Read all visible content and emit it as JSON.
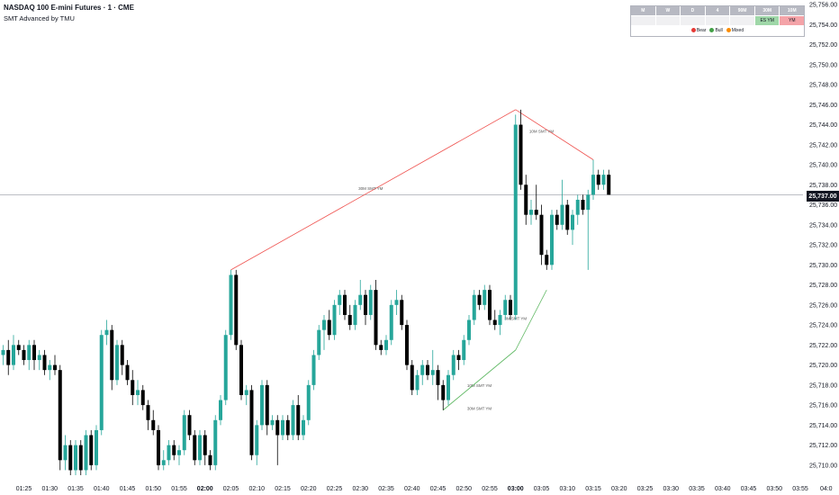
{
  "header": {
    "title": "NASDAQ 100 E-mini Futures · 1 · CME",
    "indicator": "SMT Advanced by TMU"
  },
  "smt_table": {
    "headers": [
      "M",
      "W",
      "D",
      "4",
      "90M",
      "30M",
      "10M"
    ],
    "cells": [
      "",
      "",
      "",
      "",
      "",
      "ES YM",
      "YM"
    ],
    "cell_colors": [
      "",
      "",
      "",
      "",
      "",
      "#9fd7a8",
      "#f4a3a8"
    ],
    "legend": [
      {
        "label": "Bear",
        "color": "#e53935"
      },
      {
        "label": "Bull",
        "color": "#43a047"
      },
      {
        "label": "Mixed",
        "color": "#fb8c00"
      }
    ]
  },
  "current_price": {
    "value": 25737.0,
    "label": "25,737.00"
  },
  "colors": {
    "up": "#26a69a",
    "down": "#000000",
    "bear_line": "#ef5350",
    "bull_line": "#66bb6a"
  },
  "chart_data": {
    "type": "candlestick",
    "ylim": [
      25709,
      25756
    ],
    "y_ticks": [
      25710,
      25712,
      25714,
      25716,
      25718,
      25720,
      25722,
      25724,
      25726,
      25728,
      25730,
      25732,
      25734,
      25736,
      25738,
      25740,
      25742,
      25744,
      25746,
      25748,
      25750,
      25752,
      25754,
      25756
    ],
    "y_tick_labels": [
      "25,710.00",
      "25,712.00",
      "25,714.00",
      "25,716.00",
      "25,718.00",
      "25,720.00",
      "25,722.00",
      "25,724.00",
      "25,726.00",
      "25,728.00",
      "25,730.00",
      "25,732.00",
      "25,734.00",
      "25,736.00",
      "25,738.00",
      "25,740.00",
      "25,742.00",
      "25,744.00",
      "25,746.00",
      "25,748.00",
      "25,750.00",
      "25,752.00",
      "25,754.00",
      "25,756.00"
    ],
    "x_ticks": [
      "01:25",
      "01:30",
      "01:35",
      "01:40",
      "01:45",
      "01:50",
      "01:55",
      "02:00",
      "02:05",
      "02:10",
      "02:15",
      "02:20",
      "02:25",
      "02:30",
      "02:35",
      "02:40",
      "02:45",
      "02:50",
      "02:55",
      "03:00",
      "03:05",
      "03:10",
      "03:15",
      "03:20",
      "03:25",
      "03:30",
      "03:35",
      "03:40",
      "03:45",
      "03:50",
      "03:55",
      "04:0"
    ],
    "bold_x_ticks": [
      "02:00",
      "03:00"
    ],
    "time_start": "01:21",
    "candles": [
      {
        "t": "01:21",
        "o": 25721.0,
        "h": 25722.0,
        "l": 25720.0,
        "c": 25721.5
      },
      {
        "t": "01:22",
        "o": 25721.5,
        "h": 25722.5,
        "l": 25719.0,
        "c": 25720.0
      },
      {
        "t": "01:23",
        "o": 25720.0,
        "h": 25723.0,
        "l": 25719.5,
        "c": 25722.0
      },
      {
        "t": "01:24",
        "o": 25722.0,
        "h": 25722.5,
        "l": 25721.0,
        "c": 25721.5
      },
      {
        "t": "01:25",
        "o": 25721.5,
        "h": 25722.0,
        "l": 25720.0,
        "c": 25720.5
      },
      {
        "t": "01:26",
        "o": 25720.5,
        "h": 25722.5,
        "l": 25719.5,
        "c": 25722.0
      },
      {
        "t": "01:27",
        "o": 25722.0,
        "h": 25722.5,
        "l": 25719.5,
        "c": 25720.5
      },
      {
        "t": "01:28",
        "o": 25720.5,
        "h": 25721.5,
        "l": 25719.5,
        "c": 25721.0
      },
      {
        "t": "01:29",
        "o": 25721.0,
        "h": 25721.5,
        "l": 25719.0,
        "c": 25719.5
      },
      {
        "t": "01:30",
        "o": 25719.5,
        "h": 25720.5,
        "l": 25718.5,
        "c": 25720.0
      },
      {
        "t": "01:31",
        "o": 25720.0,
        "h": 25721.0,
        "l": 25719.0,
        "c": 25719.5
      },
      {
        "t": "01:32",
        "o": 25719.5,
        "h": 25720.0,
        "l": 25709.5,
        "c": 25710.5
      },
      {
        "t": "01:33",
        "o": 25710.5,
        "h": 25713.0,
        "l": 25709.5,
        "c": 25712.0
      },
      {
        "t": "01:34",
        "o": 25712.0,
        "h": 25712.5,
        "l": 25709.0,
        "c": 25709.5
      },
      {
        "t": "01:35",
        "o": 25709.5,
        "h": 25712.5,
        "l": 25709.0,
        "c": 25712.0
      },
      {
        "t": "01:36",
        "o": 25712.0,
        "h": 25712.5,
        "l": 25709.0,
        "c": 25709.5
      },
      {
        "t": "01:37",
        "o": 25709.5,
        "h": 25713.5,
        "l": 25709.0,
        "c": 25713.0
      },
      {
        "t": "01:38",
        "o": 25713.0,
        "h": 25713.5,
        "l": 25709.5,
        "c": 25710.0
      },
      {
        "t": "01:39",
        "o": 25710.0,
        "h": 25714.0,
        "l": 25709.5,
        "c": 25713.5
      },
      {
        "t": "01:40",
        "o": 25713.5,
        "h": 25723.5,
        "l": 25713.0,
        "c": 25723.0
      },
      {
        "t": "01:41",
        "o": 25723.0,
        "h": 25724.5,
        "l": 25722.0,
        "c": 25723.5
      },
      {
        "t": "01:42",
        "o": 25723.5,
        "h": 25724.0,
        "l": 25717.5,
        "c": 25718.5
      },
      {
        "t": "01:43",
        "o": 25718.5,
        "h": 25722.5,
        "l": 25718.0,
        "c": 25722.0
      },
      {
        "t": "01:44",
        "o": 25722.0,
        "h": 25722.5,
        "l": 25719.0,
        "c": 25720.0
      },
      {
        "t": "01:45",
        "o": 25720.0,
        "h": 25720.5,
        "l": 25718.0,
        "c": 25718.5
      },
      {
        "t": "01:46",
        "o": 25718.5,
        "h": 25719.5,
        "l": 25716.0,
        "c": 25717.0
      },
      {
        "t": "01:47",
        "o": 25717.0,
        "h": 25718.5,
        "l": 25716.0,
        "c": 25717.5
      },
      {
        "t": "01:48",
        "o": 25717.5,
        "h": 25718.0,
        "l": 25715.5,
        "c": 25716.0
      },
      {
        "t": "01:49",
        "o": 25716.0,
        "h": 25716.5,
        "l": 25713.5,
        "c": 25714.5
      },
      {
        "t": "01:50",
        "o": 25714.5,
        "h": 25715.5,
        "l": 25713.0,
        "c": 25713.5
      },
      {
        "t": "01:51",
        "o": 25713.5,
        "h": 25714.0,
        "l": 25709.5,
        "c": 25710.0
      },
      {
        "t": "01:52",
        "o": 25710.0,
        "h": 25711.5,
        "l": 25709.5,
        "c": 25710.5
      },
      {
        "t": "01:53",
        "o": 25710.5,
        "h": 25712.5,
        "l": 25710.0,
        "c": 25712.0
      },
      {
        "t": "01:54",
        "o": 25712.0,
        "h": 25712.5,
        "l": 25710.5,
        "c": 25711.0
      },
      {
        "t": "01:55",
        "o": 25711.0,
        "h": 25712.0,
        "l": 25710.0,
        "c": 25711.5
      },
      {
        "t": "01:56",
        "o": 25711.5,
        "h": 25715.5,
        "l": 25711.0,
        "c": 25715.0
      },
      {
        "t": "01:57",
        "o": 25715.0,
        "h": 25715.5,
        "l": 25712.5,
        "c": 25713.0
      },
      {
        "t": "01:58",
        "o": 25713.0,
        "h": 25713.5,
        "l": 25710.0,
        "c": 25710.5
      },
      {
        "t": "01:59",
        "o": 25710.5,
        "h": 25713.5,
        "l": 25710.0,
        "c": 25713.0
      },
      {
        "t": "02:00",
        "o": 25713.0,
        "h": 25713.5,
        "l": 25710.0,
        "c": 25711.0
      },
      {
        "t": "02:01",
        "o": 25711.0,
        "h": 25711.5,
        "l": 25709.5,
        "c": 25710.0
      },
      {
        "t": "02:02",
        "o": 25710.0,
        "h": 25715.0,
        "l": 25709.5,
        "c": 25714.5
      },
      {
        "t": "02:03",
        "o": 25714.5,
        "h": 25717.0,
        "l": 25714.0,
        "c": 25716.5
      },
      {
        "t": "02:04",
        "o": 25716.5,
        "h": 25723.5,
        "l": 25716.0,
        "c": 25723.0
      },
      {
        "t": "02:05",
        "o": 25723.0,
        "h": 25729.5,
        "l": 25722.5,
        "c": 25729.0
      },
      {
        "t": "02:06",
        "o": 25729.0,
        "h": 25729.5,
        "l": 25721.5,
        "c": 25722.0
      },
      {
        "t": "02:07",
        "o": 25722.0,
        "h": 25722.5,
        "l": 25716.5,
        "c": 25717.0
      },
      {
        "t": "02:08",
        "o": 25717.0,
        "h": 25718.0,
        "l": 25716.0,
        "c": 25717.5
      },
      {
        "t": "02:09",
        "o": 25717.5,
        "h": 25718.0,
        "l": 25710.5,
        "c": 25711.0
      },
      {
        "t": "02:10",
        "o": 25711.0,
        "h": 25714.5,
        "l": 25710.0,
        "c": 25714.0
      },
      {
        "t": "02:11",
        "o": 25714.0,
        "h": 25718.5,
        "l": 25713.5,
        "c": 25718.0
      },
      {
        "t": "02:12",
        "o": 25718.0,
        "h": 25718.5,
        "l": 25713.0,
        "c": 25714.0
      },
      {
        "t": "02:13",
        "o": 25714.0,
        "h": 25715.0,
        "l": 25713.5,
        "c": 25714.5
      },
      {
        "t": "02:14",
        "o": 25714.5,
        "h": 25715.0,
        "l": 25710.0,
        "c": 25713.0
      },
      {
        "t": "02:15",
        "o": 25713.0,
        "h": 25715.0,
        "l": 25712.5,
        "c": 25714.5
      },
      {
        "t": "02:16",
        "o": 25714.5,
        "h": 25715.0,
        "l": 25712.5,
        "c": 25713.0
      },
      {
        "t": "02:17",
        "o": 25713.0,
        "h": 25716.5,
        "l": 25712.5,
        "c": 25716.0
      },
      {
        "t": "02:18",
        "o": 25716.0,
        "h": 25717.0,
        "l": 25712.5,
        "c": 25713.0
      },
      {
        "t": "02:19",
        "o": 25713.0,
        "h": 25715.0,
        "l": 25712.5,
        "c": 25714.5
      },
      {
        "t": "02:20",
        "o": 25714.5,
        "h": 25718.5,
        "l": 25714.0,
        "c": 25718.0
      },
      {
        "t": "02:21",
        "o": 25718.0,
        "h": 25721.5,
        "l": 25717.5,
        "c": 25721.0
      },
      {
        "t": "02:22",
        "o": 25721.0,
        "h": 25724.0,
        "l": 25720.5,
        "c": 25723.5
      },
      {
        "t": "02:23",
        "o": 25723.5,
        "h": 25725.0,
        "l": 25721.5,
        "c": 25724.5
      },
      {
        "t": "02:24",
        "o": 25724.5,
        "h": 25725.5,
        "l": 25722.5,
        "c": 25723.0
      },
      {
        "t": "02:25",
        "o": 25723.0,
        "h": 25726.5,
        "l": 25722.5,
        "c": 25726.0
      },
      {
        "t": "02:26",
        "o": 25726.0,
        "h": 25727.5,
        "l": 25725.0,
        "c": 25727.0
      },
      {
        "t": "02:27",
        "o": 25727.0,
        "h": 25727.5,
        "l": 25724.5,
        "c": 25725.0
      },
      {
        "t": "02:28",
        "o": 25725.0,
        "h": 25726.0,
        "l": 25723.5,
        "c": 25724.0
      },
      {
        "t": "02:29",
        "o": 25724.0,
        "h": 25726.5,
        "l": 25723.5,
        "c": 25726.0
      },
      {
        "t": "02:30",
        "o": 25726.0,
        "h": 25728.5,
        "l": 25725.5,
        "c": 25727.0
      },
      {
        "t": "02:31",
        "o": 25727.0,
        "h": 25727.5,
        "l": 25724.0,
        "c": 25725.0
      },
      {
        "t": "02:32",
        "o": 25725.0,
        "h": 25728.0,
        "l": 25724.5,
        "c": 25727.5
      },
      {
        "t": "02:33",
        "o": 25727.5,
        "h": 25728.5,
        "l": 25721.5,
        "c": 25722.0
      },
      {
        "t": "02:34",
        "o": 25722.0,
        "h": 25722.5,
        "l": 25721.0,
        "c": 25721.5
      },
      {
        "t": "02:35",
        "o": 25721.5,
        "h": 25723.0,
        "l": 25721.0,
        "c": 25722.5
      },
      {
        "t": "02:36",
        "o": 25722.5,
        "h": 25726.5,
        "l": 25722.0,
        "c": 25726.0
      },
      {
        "t": "02:37",
        "o": 25726.0,
        "h": 25727.5,
        "l": 25725.0,
        "c": 25726.5
      },
      {
        "t": "02:38",
        "o": 25726.5,
        "h": 25727.0,
        "l": 25723.5,
        "c": 25724.0
      },
      {
        "t": "02:39",
        "o": 25724.0,
        "h": 25724.5,
        "l": 25719.5,
        "c": 25720.0
      },
      {
        "t": "02:40",
        "o": 25720.0,
        "h": 25720.5,
        "l": 25717.0,
        "c": 25717.5
      },
      {
        "t": "02:41",
        "o": 25717.5,
        "h": 25719.5,
        "l": 25717.0,
        "c": 25719.0
      },
      {
        "t": "02:42",
        "o": 25719.0,
        "h": 25720.5,
        "l": 25718.0,
        "c": 25720.0
      },
      {
        "t": "02:43",
        "o": 25720.0,
        "h": 25720.5,
        "l": 25718.5,
        "c": 25719.0
      },
      {
        "t": "02:44",
        "o": 25719.0,
        "h": 25721.5,
        "l": 25718.0,
        "c": 25719.5
      },
      {
        "t": "02:45",
        "o": 25719.5,
        "h": 25720.0,
        "l": 25716.5,
        "c": 25718.0
      },
      {
        "t": "02:46",
        "o": 25718.0,
        "h": 25718.5,
        "l": 25715.5,
        "c": 25716.5
      },
      {
        "t": "02:47",
        "o": 25716.5,
        "h": 25719.5,
        "l": 25716.0,
        "c": 25719.0
      },
      {
        "t": "02:48",
        "o": 25719.0,
        "h": 25721.5,
        "l": 25718.5,
        "c": 25721.0
      },
      {
        "t": "02:49",
        "o": 25721.0,
        "h": 25721.5,
        "l": 25719.5,
        "c": 25720.5
      },
      {
        "t": "02:50",
        "o": 25720.5,
        "h": 25723.0,
        "l": 25720.0,
        "c": 25722.5
      },
      {
        "t": "02:51",
        "o": 25722.5,
        "h": 25725.0,
        "l": 25722.0,
        "c": 25724.5
      },
      {
        "t": "02:52",
        "o": 25724.5,
        "h": 25727.5,
        "l": 25724.0,
        "c": 25727.0
      },
      {
        "t": "02:53",
        "o": 25727.0,
        "h": 25727.5,
        "l": 25725.5,
        "c": 25726.0
      },
      {
        "t": "02:54",
        "o": 25726.0,
        "h": 25728.0,
        "l": 25725.5,
        "c": 25727.5
      },
      {
        "t": "02:55",
        "o": 25727.5,
        "h": 25728.0,
        "l": 25724.0,
        "c": 25724.5
      },
      {
        "t": "02:56",
        "o": 25724.5,
        "h": 25725.5,
        "l": 25723.5,
        "c": 25724.0
      },
      {
        "t": "02:57",
        "o": 25724.0,
        "h": 25725.5,
        "l": 25723.0,
        "c": 25725.0
      },
      {
        "t": "02:58",
        "o": 25725.0,
        "h": 25727.0,
        "l": 25724.5,
        "c": 25726.5
      },
      {
        "t": "02:59",
        "o": 25726.5,
        "h": 25727.0,
        "l": 25724.5,
        "c": 25725.0
      },
      {
        "t": "03:00",
        "o": 25725.0,
        "h": 25745.0,
        "l": 25724.5,
        "c": 25744.0
      },
      {
        "t": "03:01",
        "o": 25744.0,
        "h": 25745.5,
        "l": 25737.5,
        "c": 25738.0
      },
      {
        "t": "03:02",
        "o": 25738.0,
        "h": 25739.0,
        "l": 25734.0,
        "c": 25735.0
      },
      {
        "t": "03:03",
        "o": 25735.0,
        "h": 25736.5,
        "l": 25734.0,
        "c": 25735.5
      },
      {
        "t": "03:04",
        "o": 25735.5,
        "h": 25738.0,
        "l": 25734.5,
        "c": 25735.0
      },
      {
        "t": "03:05",
        "o": 25735.0,
        "h": 25736.0,
        "l": 25730.0,
        "c": 25731.0
      },
      {
        "t": "03:06",
        "o": 25731.0,
        "h": 25731.5,
        "l": 25729.5,
        "c": 25730.0
      },
      {
        "t": "03:07",
        "o": 25730.0,
        "h": 25735.5,
        "l": 25729.5,
        "c": 25735.0
      },
      {
        "t": "03:08",
        "o": 25735.0,
        "h": 25735.5,
        "l": 25733.5,
        "c": 25734.0
      },
      {
        "t": "03:09",
        "o": 25734.0,
        "h": 25738.5,
        "l": 25733.5,
        "c": 25736.0
      },
      {
        "t": "03:10",
        "o": 25736.0,
        "h": 25736.5,
        "l": 25733.0,
        "c": 25733.5
      },
      {
        "t": "03:11",
        "o": 25733.5,
        "h": 25735.5,
        "l": 25732.0,
        "c": 25735.0
      },
      {
        "t": "03:12",
        "o": 25735.0,
        "h": 25737.0,
        "l": 25734.0,
        "c": 25736.5
      },
      {
        "t": "03:13",
        "o": 25736.5,
        "h": 25737.0,
        "l": 25735.0,
        "c": 25735.5
      },
      {
        "t": "03:14",
        "o": 25735.5,
        "h": 25737.5,
        "l": 25729.5,
        "c": 25737.0
      },
      {
        "t": "03:15",
        "o": 25737.0,
        "h": 25740.5,
        "l": 25736.5,
        "c": 25739.0
      },
      {
        "t": "03:16",
        "o": 25739.0,
        "h": 25739.5,
        "l": 25737.5,
        "c": 25738.0
      },
      {
        "t": "03:17",
        "o": 25738.0,
        "h": 25739.5,
        "l": 25737.5,
        "c": 25739.0
      },
      {
        "t": "03:18",
        "o": 25739.0,
        "h": 25739.5,
        "l": 25737.0,
        "c": 25737.0
      }
    ],
    "smt_lines": [
      {
        "label": "30M SMT YM",
        "type": "bear",
        "from": {
          "t": "02:05",
          "p": 25729.5
        },
        "to": {
          "t": "03:00",
          "p": 25745.5
        },
        "label_at": {
          "t": "02:32",
          "p": 25737.5
        }
      },
      {
        "label": "10M SMT YM",
        "type": "bear",
        "from": {
          "t": "03:00",
          "p": 25745.5
        },
        "to": {
          "t": "03:15",
          "p": 25740.5
        },
        "label_at": {
          "t": "03:05",
          "p": 25743.2
        }
      },
      {
        "label": "3M SMT YM",
        "type": "bull",
        "from": {
          "t": "03:00",
          "p": 25721.5
        },
        "to": {
          "t": "03:06",
          "p": 25727.5
        },
        "label_at": {
          "t": "03:00",
          "p": 25724.5
        }
      },
      {
        "label": "10M SMT YM",
        "type": "bull",
        "from": {
          "t": "02:46",
          "p": 25715.5
        },
        "to": {
          "t": "03:00",
          "p": 25721.5
        },
        "label_at": {
          "t": "02:53",
          "p": 25717.8
        }
      },
      {
        "label": "30M SMT YM",
        "type": "bull",
        "from": {
          "t": "02:46",
          "p": 25715.5
        },
        "to": {
          "t": "03:00",
          "p": 25721.5
        },
        "label_at": {
          "t": "02:53",
          "p": 25715.5
        }
      }
    ]
  }
}
